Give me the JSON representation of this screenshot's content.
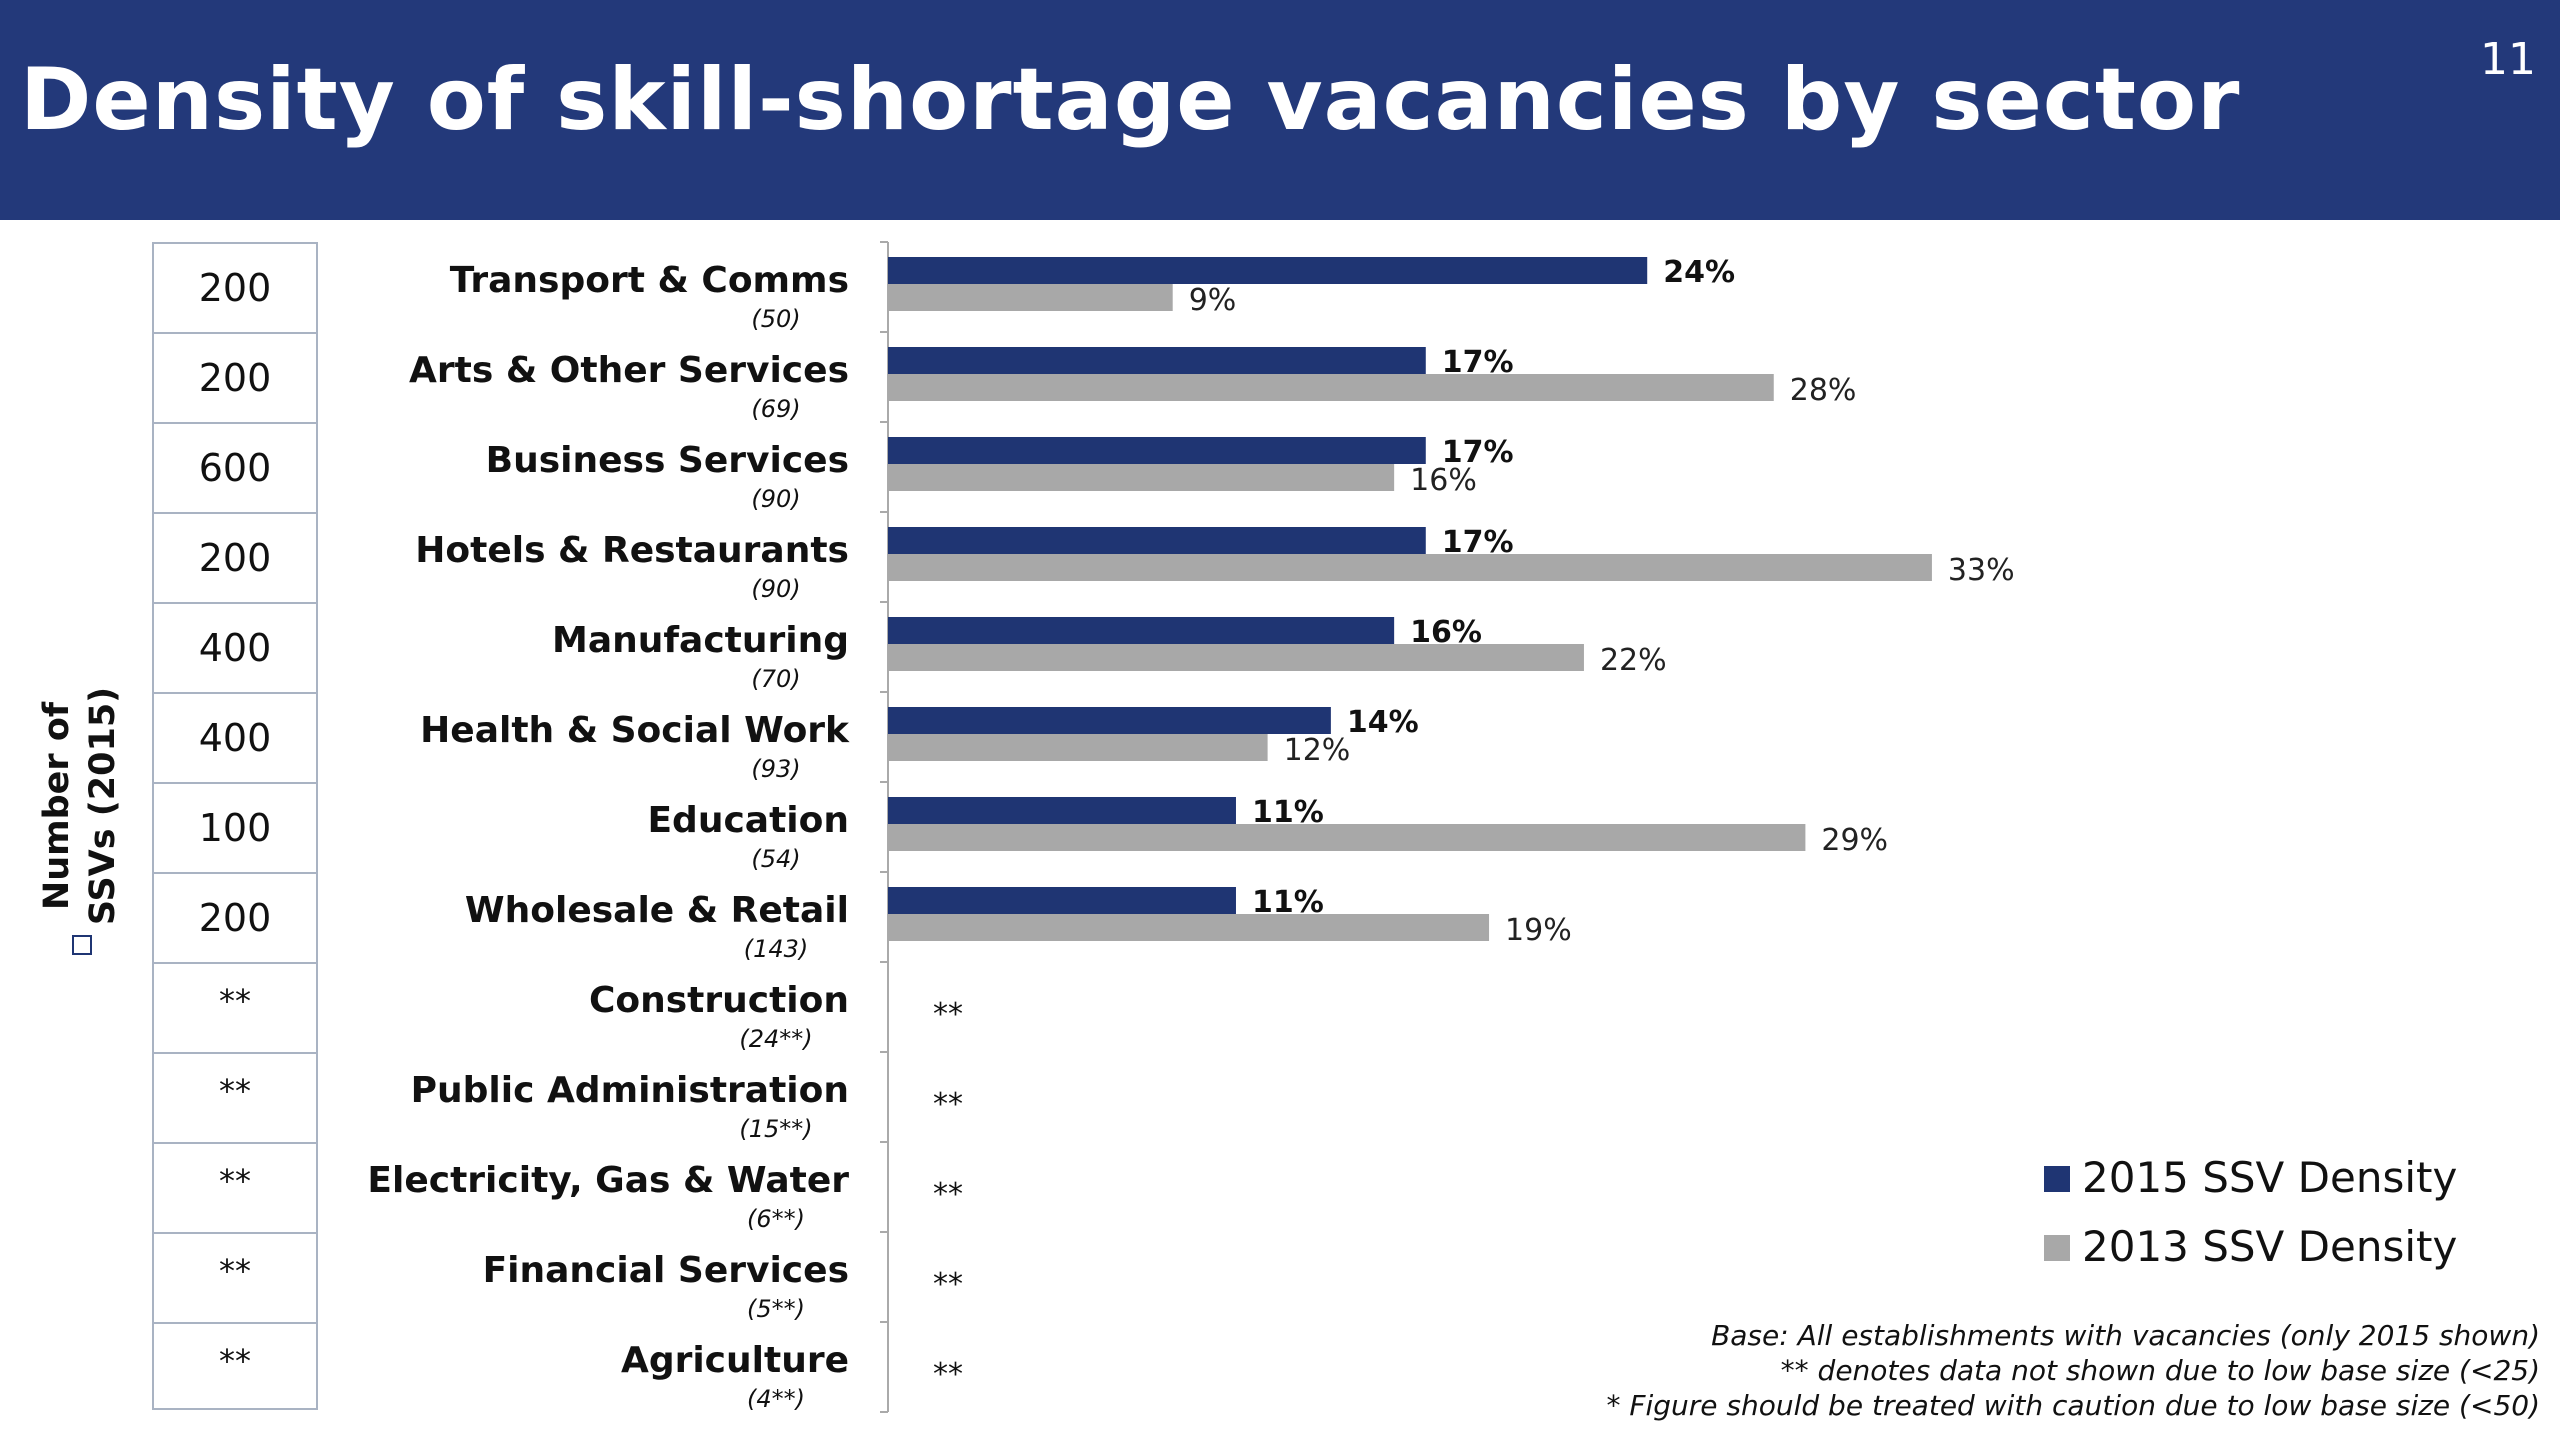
{
  "header": {
    "title": "Density of skill-shortage vacancies by sector",
    "slide_number": "11"
  },
  "colors": {
    "header_bg": "#23397a",
    "series_2015": "#1f3573",
    "series_2013": "#a8a8a8"
  },
  "ssv_axis_label": [
    "Number of",
    "SSVs (2015)"
  ],
  "ssv_counts": [
    "200",
    "200",
    "600",
    "200",
    "400",
    "400",
    "100",
    "200",
    "**",
    "**",
    "**",
    "**",
    "**"
  ],
  "notes": [
    "Base: All establishments with vacancies (only 2015 shown)",
    "** denotes data not shown due to low base size (<25)",
    "* Figure should be treated with caution due to low base size (<50)"
  ],
  "chart_data": {
    "type": "bar",
    "orientation": "horizontal",
    "categories": [
      "Transport & Comms",
      "Arts & Other Services",
      "Business Services",
      "Hotels & Restaurants",
      "Manufacturing",
      "Health & Social Work",
      "Education",
      "Wholesale & Retail",
      "Construction",
      "Public Administration",
      "Electricity, Gas & Water",
      "Financial Services",
      "Agriculture"
    ],
    "base_sizes": [
      "(50)",
      "(69)",
      "(90)",
      "(90)",
      "(70)",
      "(93)",
      "(54)",
      "(143)",
      "(24**)",
      "(15**)",
      "(6**)",
      "(5**)",
      "(4**)"
    ],
    "series": [
      {
        "name": "2015 SSV Density",
        "values": [
          24,
          17,
          17,
          17,
          16,
          14,
          11,
          11,
          null,
          null,
          null,
          null,
          null
        ]
      },
      {
        "name": "2013 SSV Density",
        "values": [
          9,
          28,
          16,
          33,
          22,
          12,
          29,
          19,
          null,
          null,
          null,
          null,
          null
        ]
      }
    ],
    "missing_label": "**",
    "value_suffix": "%",
    "xlim": [
      0,
      41
    ],
    "grid": false,
    "legend_position": "bottom-right"
  }
}
